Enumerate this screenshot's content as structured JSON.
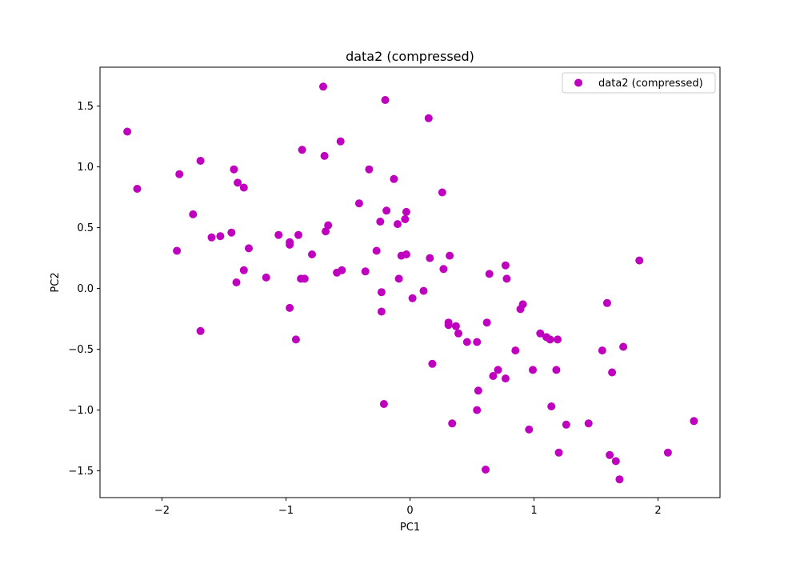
{
  "chart_data": {
    "type": "scatter",
    "title": "data2 (compressed)",
    "xlabel": "PC1",
    "ylabel": "PC2",
    "xlim": [
      -2.5,
      2.5
    ],
    "ylim": [
      -1.72,
      1.82
    ],
    "xticks": [
      -2,
      -1,
      0,
      1,
      2
    ],
    "xtick_labels": [
      "−2",
      "−1",
      "0",
      "1",
      "2"
    ],
    "yticks": [
      -1.5,
      -1.0,
      -0.5,
      0.0,
      0.5,
      1.0,
      1.5
    ],
    "ytick_labels": [
      "−1.5",
      "−1.0",
      "−0.5",
      "0.0",
      "0.5",
      "1.0",
      "1.5"
    ],
    "grid": false,
    "legend_position": "top-right",
    "series": [
      {
        "name": "data2 (compressed)",
        "color": "#bf00bf",
        "points": [
          [
            -2.28,
            1.29
          ],
          [
            -2.2,
            0.82
          ],
          [
            -1.88,
            0.31
          ],
          [
            -1.86,
            0.94
          ],
          [
            -1.75,
            0.61
          ],
          [
            -1.69,
            1.05
          ],
          [
            -1.69,
            -0.35
          ],
          [
            -1.6,
            0.42
          ],
          [
            -1.53,
            0.43
          ],
          [
            -1.44,
            0.46
          ],
          [
            -1.42,
            0.98
          ],
          [
            -1.4,
            0.05
          ],
          [
            -1.39,
            0.87
          ],
          [
            -1.34,
            0.15
          ],
          [
            -1.34,
            0.83
          ],
          [
            -1.3,
            0.33
          ],
          [
            -1.16,
            0.09
          ],
          [
            -1.06,
            0.44
          ],
          [
            -0.97,
            0.38
          ],
          [
            -0.97,
            0.36
          ],
          [
            -0.97,
            -0.16
          ],
          [
            -0.92,
            -0.42
          ],
          [
            -0.9,
            0.44
          ],
          [
            -0.88,
            0.08
          ],
          [
            -0.87,
            1.14
          ],
          [
            -0.85,
            0.08
          ],
          [
            -0.79,
            0.28
          ],
          [
            -0.7,
            1.66
          ],
          [
            -0.69,
            1.09
          ],
          [
            -0.68,
            0.47
          ],
          [
            -0.66,
            0.52
          ],
          [
            -0.59,
            0.13
          ],
          [
            -0.56,
            1.21
          ],
          [
            -0.55,
            0.15
          ],
          [
            -0.41,
            0.7
          ],
          [
            -0.36,
            0.14
          ],
          [
            -0.33,
            0.98
          ],
          [
            -0.27,
            0.31
          ],
          [
            -0.24,
            0.55
          ],
          [
            -0.23,
            -0.03
          ],
          [
            -0.23,
            -0.19
          ],
          [
            -0.21,
            -0.95
          ],
          [
            -0.2,
            1.55
          ],
          [
            -0.19,
            0.64
          ],
          [
            -0.13,
            0.9
          ],
          [
            -0.1,
            0.53
          ],
          [
            -0.09,
            0.08
          ],
          [
            -0.07,
            0.27
          ],
          [
            -0.04,
            0.57
          ],
          [
            -0.03,
            0.63
          ],
          [
            -0.03,
            0.28
          ],
          [
            0.02,
            -0.08
          ],
          [
            0.11,
            -0.02
          ],
          [
            0.15,
            1.4
          ],
          [
            0.16,
            0.25
          ],
          [
            0.18,
            -0.62
          ],
          [
            0.26,
            0.79
          ],
          [
            0.27,
            0.16
          ],
          [
            0.31,
            -0.28
          ],
          [
            0.31,
            -0.3
          ],
          [
            0.32,
            0.27
          ],
          [
            0.34,
            -1.11
          ],
          [
            0.37,
            -0.31
          ],
          [
            0.39,
            -0.37
          ],
          [
            0.46,
            -0.44
          ],
          [
            0.54,
            -0.44
          ],
          [
            0.55,
            -0.84
          ],
          [
            0.54,
            -1.0
          ],
          [
            0.61,
            -1.49
          ],
          [
            0.62,
            -0.28
          ],
          [
            0.64,
            0.12
          ],
          [
            0.67,
            -0.72
          ],
          [
            0.71,
            -0.67
          ],
          [
            0.77,
            -0.74
          ],
          [
            0.77,
            0.19
          ],
          [
            0.78,
            0.08
          ],
          [
            0.85,
            -0.51
          ],
          [
            0.89,
            -0.17
          ],
          [
            0.91,
            -0.13
          ],
          [
            0.96,
            -1.16
          ],
          [
            0.99,
            -0.67
          ],
          [
            1.05,
            -0.37
          ],
          [
            1.1,
            -0.4
          ],
          [
            1.13,
            -0.42
          ],
          [
            1.14,
            -0.97
          ],
          [
            1.18,
            -0.67
          ],
          [
            1.19,
            -0.42
          ],
          [
            1.2,
            -1.35
          ],
          [
            1.26,
            -1.12
          ],
          [
            1.44,
            -1.11
          ],
          [
            1.55,
            -0.51
          ],
          [
            1.59,
            -0.12
          ],
          [
            1.61,
            -1.37
          ],
          [
            1.63,
            -0.69
          ],
          [
            1.66,
            -1.42
          ],
          [
            1.69,
            -1.57
          ],
          [
            1.72,
            -0.48
          ],
          [
            1.85,
            0.23
          ],
          [
            2.08,
            -1.35
          ],
          [
            2.29,
            -1.09
          ]
        ]
      }
    ]
  }
}
